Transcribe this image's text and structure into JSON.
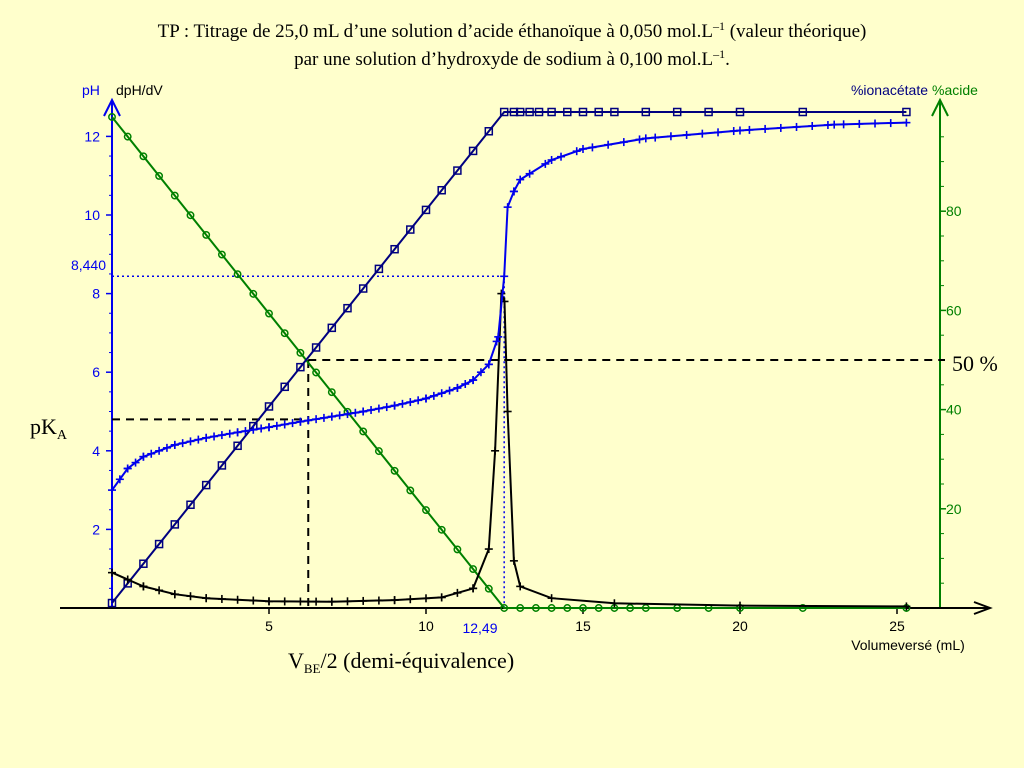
{
  "chart_data": {
    "type": "line",
    "title_line1": "TP : Titrage de 25,0 mL d’une solution d’acide éthanoïque à 0,050 mol.L",
    "title_line1_sup": "–1",
    "title_line1_end": " (valeur théorique)",
    "title_line2": "par une solution d’hydroxyde de sodium à 0,100 mol.L",
    "title_line2_sup": "–1",
    "title_line2_end": ".",
    "xlabel": "Volumeversé (mL)",
    "ylabel_left": "pH",
    "ylabel_left2": "dpH/dV",
    "ylabel_right": "%ionacétate",
    "ylabel_right2": "%acide",
    "colors": {
      "ph": "#0000ee",
      "deriv": "#000000",
      "ion": "#000080",
      "acid": "#008000",
      "title": "#000000"
    },
    "xlim": [
      0,
      28
    ],
    "ylim_left": [
      0,
      12.4
    ],
    "ylim_right": [
      0,
      100
    ],
    "x_ticks": [
      "5",
      "10",
      "15",
      "20",
      "25"
    ],
    "y_left_ticks": [
      "2",
      "4",
      "6",
      "8",
      "10",
      "12"
    ],
    "y_right_ticks": [
      "20",
      "40",
      "60",
      "80"
    ],
    "annotations": {
      "equiv_x_label": "12,49",
      "equiv_ph_label": "8,440",
      "pka_label": "pK",
      "pka_sub": "A",
      "half_label_main": "V",
      "half_label_sub": "BE",
      "half_label_end": "/2 (demi-équivalence)",
      "fifty_label": "50 %"
    },
    "equivalence": {
      "volume": 12.49,
      "ph": 8.44
    },
    "half_equivalence": {
      "volume": 6.25,
      "ph": 4.8,
      "percent": 50
    },
    "series": [
      {
        "name": "pH",
        "axis": "left",
        "points": [
          [
            0,
            3.0
          ],
          [
            0.5,
            3.55
          ],
          [
            1,
            3.85
          ],
          [
            2,
            4.15
          ],
          [
            3,
            4.33
          ],
          [
            4,
            4.47
          ],
          [
            5,
            4.6
          ],
          [
            6,
            4.74
          ],
          [
            7,
            4.87
          ],
          [
            8,
            5.0
          ],
          [
            9,
            5.15
          ],
          [
            10,
            5.33
          ],
          [
            11,
            5.6
          ],
          [
            11.5,
            5.8
          ],
          [
            12,
            6.2
          ],
          [
            12.3,
            6.9
          ],
          [
            12.49,
            8.44
          ],
          [
            12.6,
            10.2
          ],
          [
            12.8,
            10.6
          ],
          [
            13,
            10.9
          ],
          [
            14,
            11.4
          ],
          [
            15,
            11.68
          ],
          [
            17,
            11.95
          ],
          [
            20,
            12.15
          ],
          [
            23,
            12.3
          ],
          [
            25.3,
            12.35
          ]
        ]
      },
      {
        "name": "dpH/dV",
        "axis": "left",
        "points": [
          [
            0,
            0.9
          ],
          [
            1,
            0.55
          ],
          [
            2,
            0.35
          ],
          [
            3,
            0.25
          ],
          [
            5,
            0.17
          ],
          [
            7,
            0.16
          ],
          [
            9,
            0.2
          ],
          [
            10.5,
            0.27
          ],
          [
            11.5,
            0.5
          ],
          [
            12,
            1.5
          ],
          [
            12.2,
            4.0
          ],
          [
            12.4,
            8.0
          ],
          [
            12.5,
            7.8
          ],
          [
            12.6,
            5.0
          ],
          [
            12.8,
            1.2
          ],
          [
            13,
            0.55
          ],
          [
            14,
            0.25
          ],
          [
            16,
            0.12
          ],
          [
            20,
            0.06
          ],
          [
            25.3,
            0.04
          ]
        ]
      },
      {
        "name": "%ionacétate",
        "axis": "right",
        "points": [
          [
            0,
            1
          ],
          [
            12.49,
            100
          ],
          [
            25.3,
            100
          ]
        ]
      },
      {
        "name": "%acide",
        "axis": "right",
        "points": [
          [
            0,
            99
          ],
          [
            12.49,
            0
          ],
          [
            25.3,
            0
          ]
        ]
      }
    ]
  }
}
